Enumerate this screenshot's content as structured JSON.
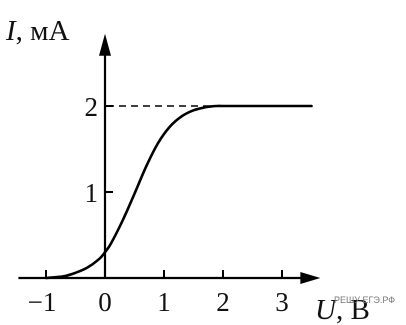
{
  "chart_data": {
    "type": "line",
    "xlabel": {
      "symbol": "U",
      "unit": ", В"
    },
    "ylabel": {
      "symbol": "I",
      "unit": ", мА"
    },
    "xlim": [
      -1.4,
      3.65
    ],
    "ylim": [
      0,
      2.7
    ],
    "xticks": [
      -1,
      0,
      1,
      2,
      3
    ],
    "xtick_labels": [
      "−1",
      "0",
      "1",
      "2",
      "3"
    ],
    "yticks": [
      1,
      2
    ],
    "ytick_labels": [
      "1",
      "2"
    ],
    "grid": false,
    "legend": "none",
    "series": [
      {
        "x": [
          -1.0,
          -0.7,
          -0.5,
          -0.3,
          -0.1,
          0.0,
          0.1,
          0.3,
          0.5,
          0.7,
          0.9,
          1.1,
          1.3,
          1.5,
          1.7,
          1.8,
          1.9,
          2.0,
          2.5,
          3.0,
          3.5
        ],
        "y": [
          0.0,
          0.02,
          0.06,
          0.12,
          0.22,
          0.3,
          0.4,
          0.67,
          0.98,
          1.3,
          1.57,
          1.76,
          1.88,
          1.95,
          1.985,
          1.995,
          2.0,
          2.0,
          2.0,
          2.0,
          2.0
        ]
      }
    ],
    "reference_lines": [
      {
        "orientation": "horizontal",
        "y": 2,
        "x_from": 0,
        "x_to": 1.9,
        "style": "dashed"
      }
    ],
    "watermark": "РЕШУ ЕГЭ.РФ"
  }
}
